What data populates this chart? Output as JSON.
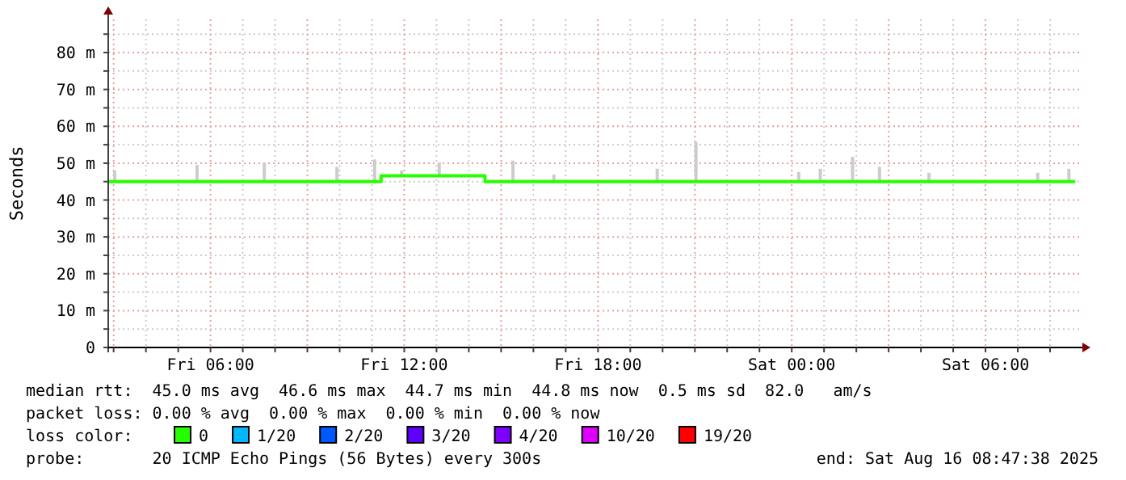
{
  "chart_data": {
    "type": "step",
    "ylabel": "Seconds",
    "legend_title": "loss color:",
    "legend": "bottom",
    "grid": true,
    "xlim": [
      "2025-08-15T02:50",
      "2025-08-16T09:00"
    ],
    "xticks": [
      {
        "value": "2025-08-15T03:00",
        "label": null
      },
      {
        "value": "2025-08-15T04:00",
        "label": null
      },
      {
        "value": "2025-08-15T05:00",
        "label": null
      },
      {
        "value": "2025-08-15T06:00",
        "label": "Fri 06:00"
      },
      {
        "value": "2025-08-15T07:00",
        "label": null
      },
      {
        "value": "2025-08-15T08:00",
        "label": null
      },
      {
        "value": "2025-08-15T09:00",
        "label": null
      },
      {
        "value": "2025-08-15T10:00",
        "label": null
      },
      {
        "value": "2025-08-15T11:00",
        "label": null
      },
      {
        "value": "2025-08-15T12:00",
        "label": "Fri 12:00"
      },
      {
        "value": "2025-08-15T13:00",
        "label": null
      },
      {
        "value": "2025-08-15T14:00",
        "label": null
      },
      {
        "value": "2025-08-15T15:00",
        "label": null
      },
      {
        "value": "2025-08-15T16:00",
        "label": null
      },
      {
        "value": "2025-08-15T17:00",
        "label": null
      },
      {
        "value": "2025-08-15T18:00",
        "label": "Fri 18:00"
      },
      {
        "value": "2025-08-15T19:00",
        "label": null
      },
      {
        "value": "2025-08-15T20:00",
        "label": null
      },
      {
        "value": "2025-08-15T21:00",
        "label": null
      },
      {
        "value": "2025-08-15T22:00",
        "label": null
      },
      {
        "value": "2025-08-15T23:00",
        "label": null
      },
      {
        "value": "2025-08-16T00:00",
        "label": "Sat 00:00"
      },
      {
        "value": "2025-08-16T01:00",
        "label": null
      },
      {
        "value": "2025-08-16T02:00",
        "label": null
      },
      {
        "value": "2025-08-16T03:00",
        "label": null
      },
      {
        "value": "2025-08-16T04:00",
        "label": null
      },
      {
        "value": "2025-08-16T05:00",
        "label": null
      },
      {
        "value": "2025-08-16T06:00",
        "label": "Sat 06:00"
      },
      {
        "value": "2025-08-16T07:00",
        "label": null
      },
      {
        "value": "2025-08-16T08:00",
        "label": null
      }
    ],
    "ylim": [
      0,
      89
    ],
    "yticks": [
      0,
      {
        "value": 5,
        "label": null
      },
      {
        "value": 10,
        "label": "10 m"
      },
      {
        "value": 15,
        "label": null
      },
      {
        "value": 20,
        "label": "20 m"
      },
      {
        "value": 25,
        "label": null
      },
      {
        "value": 30,
        "label": "30 m"
      },
      {
        "value": 35,
        "label": null
      },
      {
        "value": 40,
        "label": "40 m"
      },
      {
        "value": 45,
        "label": null
      },
      {
        "value": 50,
        "label": "50 m"
      },
      {
        "value": 55,
        "label": null
      },
      {
        "value": 60,
        "label": "60 m"
      },
      {
        "value": 65,
        "label": null
      },
      {
        "value": 70,
        "label": "70 m"
      },
      {
        "value": 75,
        "label": null
      },
      {
        "value": 80,
        "label": "80 m"
      },
      {
        "value": 85,
        "label": null
      }
    ],
    "series": [
      {
        "type": "bar",
        "color": "#cccccc",
        "x": [
          "2025-08-15T03:02",
          "2025-08-15T05:35",
          "2025-08-15T07:40",
          "2025-08-15T09:55",
          "2025-08-15T11:05",
          "2025-08-15T11:55",
          "2025-08-15T13:05",
          "2025-08-15T15:22",
          "2025-08-15T16:38",
          "2025-08-15T19:50",
          "2025-08-15T21:02",
          "2025-08-16T00:13",
          "2025-08-16T00:53",
          "2025-08-16T01:53",
          "2025-08-16T02:43",
          "2025-08-16T04:15",
          "2025-08-16T07:37",
          "2025-08-16T08:35"
        ],
        "base": [
          45,
          45,
          45,
          45,
          45,
          46.6,
          46.6,
          45,
          45,
          45,
          45,
          45,
          45,
          45,
          45,
          45,
          45,
          45
        ],
        "values": [
          3,
          4.5,
          5.2,
          4,
          6,
          1.4,
          3.6,
          5.7,
          1.9,
          3.5,
          10.8,
          2.6,
          3.5,
          6.7,
          4,
          2.4,
          2.4,
          3.5
        ]
      },
      {
        "name": "0",
        "color": "#26ff00",
        "x": [
          "2025-08-15T02:51",
          "2025-08-15T11:17",
          "2025-08-15T14:30",
          "2025-08-16T08:47"
        ],
        "values": [
          45,
          46.6,
          45,
          45
        ]
      },
      {
        "name": "1/20",
        "color": "#00b8ff"
      },
      {
        "name": "2/20",
        "color": "#0059ff"
      },
      {
        "name": "3/20",
        "color": "#5e00ff"
      },
      {
        "name": "4/20",
        "color": "#7e00ff"
      },
      {
        "name": "10/20",
        "color": "#dd00ff"
      },
      {
        "name": "19/20",
        "color": "#ff0000"
      }
    ],
    "annotations": [
      "median rtt:  45.0 ms avg  46.6 ms max  44.7 ms min  44.8 ms now  0.5 ms sd  82.0   am/s",
      "packet loss: 0.00 % avg  0.00 % max  0.00 % min  0.00 % now",
      "probe:       20 ICMP Echo Pings (56 Bytes) every 300s",
      "end: Sat Aug 16 08:47:38 2025"
    ]
  }
}
